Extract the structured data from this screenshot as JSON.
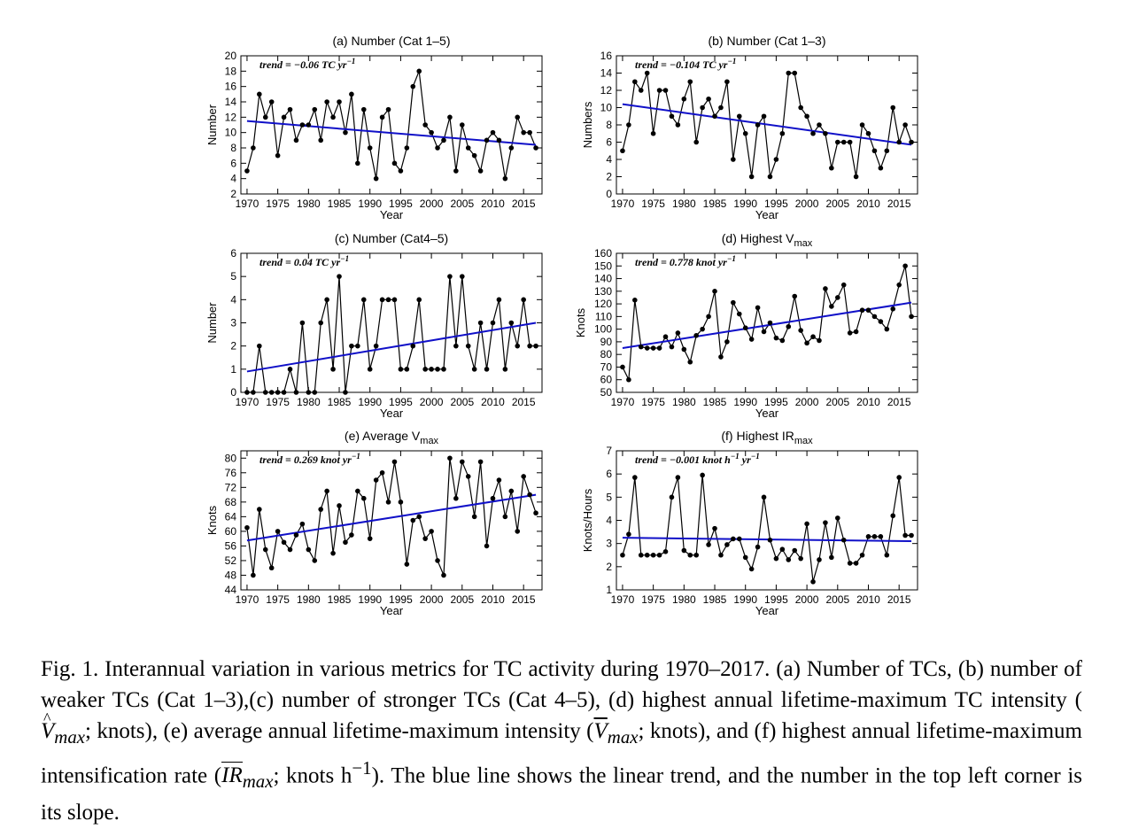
{
  "chart_data": [
    {
      "type": "line",
      "title": "(a) Number (Cat 1–5)",
      "title_sub": "",
      "xlabel": "Year",
      "ylabel": "Number",
      "xlim": [
        1969,
        2018
      ],
      "ylim": [
        2,
        20
      ],
      "yticks": [
        2,
        4,
        6,
        8,
        10,
        12,
        14,
        16,
        18,
        20
      ],
      "xticks": [
        1970,
        1975,
        1980,
        1985,
        1990,
        1995,
        2000,
        2005,
        2010,
        2015
      ],
      "trend_label": "trend = −0.06 TC yr",
      "trend_sup": "−1",
      "trend_line": [
        [
          1970,
          11.5
        ],
        [
          2017,
          8.4
        ]
      ],
      "x": [
        1970,
        1971,
        1972,
        1973,
        1974,
        1975,
        1976,
        1977,
        1978,
        1979,
        1980,
        1981,
        1982,
        1983,
        1984,
        1985,
        1986,
        1987,
        1988,
        1989,
        1990,
        1991,
        1992,
        1993,
        1994,
        1995,
        1996,
        1997,
        1998,
        1999,
        2000,
        2001,
        2002,
        2003,
        2004,
        2005,
        2006,
        2007,
        2008,
        2009,
        2010,
        2011,
        2012,
        2013,
        2014,
        2015,
        2016,
        2017
      ],
      "values": [
        5,
        8,
        15,
        12,
        14,
        7,
        12,
        13,
        9,
        11,
        11,
        13,
        9,
        14,
        12,
        14,
        10,
        15,
        6,
        13,
        8,
        4,
        12,
        13,
        6,
        5,
        8,
        16,
        18,
        11,
        10,
        8,
        9,
        12,
        5,
        11,
        8,
        7,
        5,
        9,
        10,
        9,
        4,
        8,
        12,
        10,
        10,
        8
      ]
    },
    {
      "type": "line",
      "title": "(b) Number (Cat 1–3)",
      "title_sub": "",
      "xlabel": "Year",
      "ylabel": "Numbers",
      "xlim": [
        1969,
        2018
      ],
      "ylim": [
        0,
        16
      ],
      "yticks": [
        0,
        2,
        4,
        6,
        8,
        10,
        12,
        14,
        16
      ],
      "xticks": [
        1970,
        1975,
        1980,
        1985,
        1990,
        1995,
        2000,
        2005,
        2010,
        2015
      ],
      "trend_label": "trend = −0.104 TC yr",
      "trend_sup": "−1",
      "trend_line": [
        [
          1970,
          10.4
        ],
        [
          2017,
          5.7
        ]
      ],
      "x": [
        1970,
        1971,
        1972,
        1973,
        1974,
        1975,
        1976,
        1977,
        1978,
        1979,
        1980,
        1981,
        1982,
        1983,
        1984,
        1985,
        1986,
        1987,
        1988,
        1989,
        1990,
        1991,
        1992,
        1993,
        1994,
        1995,
        1996,
        1997,
        1998,
        1999,
        2000,
        2001,
        2002,
        2003,
        2004,
        2005,
        2006,
        2007,
        2008,
        2009,
        2010,
        2011,
        2012,
        2013,
        2014,
        2015,
        2016,
        2017
      ],
      "values": [
        5,
        8,
        13,
        12,
        14,
        7,
        12,
        12,
        9,
        8,
        11,
        13,
        6,
        10,
        11,
        9,
        10,
        13,
        4,
        9,
        7,
        2,
        8,
        9,
        2,
        4,
        7,
        14,
        14,
        10,
        9,
        7,
        8,
        7,
        3,
        6,
        6,
        6,
        2,
        8,
        7,
        5,
        3,
        5,
        10,
        6,
        8,
        6
      ]
    },
    {
      "type": "line",
      "title": "(c) Number (Cat4–5)",
      "title_sub": "",
      "xlabel": "Year",
      "ylabel": "Number",
      "xlim": [
        1969,
        2018
      ],
      "ylim": [
        0,
        6
      ],
      "yticks": [
        0,
        1,
        2,
        3,
        4,
        5,
        6
      ],
      "xticks": [
        1970,
        1975,
        1980,
        1985,
        1990,
        1995,
        2000,
        2005,
        2010,
        2015
      ],
      "trend_label": "trend = 0.04 TC yr",
      "trend_sup": "−1",
      "trend_line": [
        [
          1970,
          0.9
        ],
        [
          2017,
          3.0
        ]
      ],
      "x": [
        1970,
        1971,
        1972,
        1973,
        1974,
        1975,
        1976,
        1977,
        1978,
        1979,
        1980,
        1981,
        1982,
        1983,
        1984,
        1985,
        1986,
        1987,
        1988,
        1989,
        1990,
        1991,
        1992,
        1993,
        1994,
        1995,
        1996,
        1997,
        1998,
        1999,
        2000,
        2001,
        2002,
        2003,
        2004,
        2005,
        2006,
        2007,
        2008,
        2009,
        2010,
        2011,
        2012,
        2013,
        2014,
        2015,
        2016,
        2017
      ],
      "values": [
        0,
        0,
        2,
        0,
        0,
        0,
        0,
        1,
        0,
        3,
        0,
        0,
        3,
        4,
        1,
        5,
        0,
        2,
        2,
        4,
        1,
        2,
        4,
        4,
        4,
        1,
        1,
        2,
        4,
        1,
        1,
        1,
        1,
        5,
        2,
        5,
        2,
        1,
        3,
        1,
        3,
        4,
        1,
        3,
        2,
        4,
        2,
        2
      ]
    },
    {
      "type": "line",
      "title": "(d) Highest V",
      "title_sub": "max",
      "xlabel": "Year",
      "ylabel": "Knots",
      "xlim": [
        1969,
        2018
      ],
      "ylim": [
        50,
        160
      ],
      "yticks": [
        50,
        60,
        70,
        80,
        90,
        100,
        110,
        120,
        130,
        140,
        150,
        160
      ],
      "xticks": [
        1970,
        1975,
        1980,
        1985,
        1990,
        1995,
        2000,
        2005,
        2010,
        2015
      ],
      "trend_label": "trend = 0.778 knot yr",
      "trend_sup": "−1",
      "trend_line": [
        [
          1970,
          85
        ],
        [
          2017,
          121
        ]
      ],
      "x": [
        1970,
        1971,
        1972,
        1973,
        1974,
        1975,
        1976,
        1977,
        1978,
        1979,
        1980,
        1981,
        1982,
        1983,
        1984,
        1985,
        1986,
        1987,
        1988,
        1989,
        1990,
        1991,
        1992,
        1993,
        1994,
        1995,
        1996,
        1997,
        1998,
        1999,
        2000,
        2001,
        2002,
        2003,
        2004,
        2005,
        2006,
        2007,
        2008,
        2009,
        2010,
        2011,
        2012,
        2013,
        2014,
        2015,
        2016,
        2017
      ],
      "values": [
        70,
        60,
        123,
        86,
        85,
        85,
        85,
        94,
        86,
        97,
        84,
        74,
        95,
        100,
        110,
        130,
        78,
        90,
        121,
        112,
        101,
        92,
        117,
        98,
        105,
        93,
        91,
        102,
        126,
        99,
        89,
        94,
        91,
        132,
        118,
        125,
        135,
        97,
        98,
        115,
        115,
        110,
        106,
        100,
        116,
        135,
        150,
        110
      ]
    },
    {
      "type": "line",
      "title": "(e) Average V",
      "title_sub": "max",
      "xlabel": "Year",
      "ylabel": "Knots",
      "xlim": [
        1969,
        2018
      ],
      "ylim": [
        44,
        82
      ],
      "yticks": [
        44,
        48,
        52,
        56,
        60,
        64,
        68,
        72,
        76,
        80
      ],
      "xticks": [
        1970,
        1975,
        1980,
        1985,
        1990,
        1995,
        2000,
        2005,
        2010,
        2015
      ],
      "trend_label": "trend = 0.269 knot yr",
      "trend_sup": "−1",
      "trend_line": [
        [
          1970,
          57.5
        ],
        [
          2017,
          70
        ]
      ],
      "x": [
        1970,
        1971,
        1972,
        1973,
        1974,
        1975,
        1976,
        1977,
        1978,
        1979,
        1980,
        1981,
        1982,
        1983,
        1984,
        1985,
        1986,
        1987,
        1988,
        1989,
        1990,
        1991,
        1992,
        1993,
        1994,
        1995,
        1996,
        1997,
        1998,
        1999,
        2000,
        2001,
        2002,
        2003,
        2004,
        2005,
        2006,
        2007,
        2008,
        2009,
        2010,
        2011,
        2012,
        2013,
        2014,
        2015,
        2016,
        2017
      ],
      "values": [
        61,
        48,
        66,
        55,
        50,
        60,
        57,
        55,
        59,
        62,
        55,
        52,
        66,
        71,
        54,
        67,
        57,
        59,
        71,
        69,
        58,
        74,
        76,
        68,
        79,
        68,
        51,
        63,
        64,
        58,
        60,
        52,
        48,
        80,
        69,
        79,
        75,
        64,
        79,
        56,
        69,
        74,
        64,
        71,
        60,
        75,
        70,
        65
      ]
    },
    {
      "type": "line",
      "title": "(f) Highest IR",
      "title_sub": "max",
      "xlabel": "Year",
      "ylabel": "Knots/Hours",
      "xlim": [
        1969,
        2018
      ],
      "ylim": [
        1,
        7
      ],
      "yticks": [
        1,
        2,
        3,
        4,
        5,
        6,
        7
      ],
      "xticks": [
        1970,
        1975,
        1980,
        1985,
        1990,
        1995,
        2000,
        2005,
        2010,
        2015
      ],
      "trend_label": "trend = −0.001 knot h",
      "trend_sup": "−1",
      "trend_label2": " yr",
      "trend_sup2": "−1",
      "trend_line": [
        [
          1970,
          3.25
        ],
        [
          2017,
          3.1
        ]
      ],
      "x": [
        1970,
        1971,
        1972,
        1973,
        1974,
        1975,
        1976,
        1977,
        1978,
        1979,
        1980,
        1981,
        1982,
        1983,
        1984,
        1985,
        1986,
        1987,
        1988,
        1989,
        1990,
        1991,
        1992,
        1993,
        1994,
        1995,
        1996,
        1997,
        1998,
        1999,
        2000,
        2001,
        2002,
        2003,
        2004,
        2005,
        2006,
        2007,
        2008,
        2009,
        2010,
        2011,
        2012,
        2013,
        2014,
        2015,
        2016,
        2017
      ],
      "values": [
        2.5,
        3.4,
        5.85,
        2.5,
        2.5,
        2.5,
        2.5,
        2.65,
        5.0,
        5.85,
        2.7,
        2.5,
        2.5,
        5.95,
        2.95,
        3.65,
        2.5,
        2.95,
        3.2,
        3.2,
        2.4,
        1.9,
        2.85,
        5.0,
        3.15,
        2.35,
        2.75,
        2.3,
        2.7,
        2.35,
        3.85,
        1.35,
        2.3,
        3.9,
        2.4,
        4.1,
        3.15,
        2.15,
        2.15,
        2.5,
        3.3,
        3.3,
        3.3,
        2.5,
        4.2,
        5.85,
        3.35,
        3.35
      ]
    }
  ],
  "caption": {
    "fig_label": "Fig. 1.",
    "p1": " Interannual variation in various metrics for TC activity during 1970–2017. (a) Number of TCs, (b) number of weaker TCs (Cat 1–3),(c) number of stronger TCs (Cat 4–5), (d) highest annual lifetime-maximum TC intensity (",
    "v_sym": "V",
    "v_sub": "max",
    "p2": "; knots), (e) average annual lifetime-maximum intensity (",
    "vbar_sym": "V",
    "vbar_sub": "max",
    "p3": "; knots), and (f) highest annual lifetime-maximum intensification rate (",
    "ir_sym": "IR",
    "ir_sub": "max",
    "p4": "; knots h",
    "p4_sup": "−1",
    "p5": "). The blue line shows the linear trend, and the number in the top left corner is its slope."
  }
}
